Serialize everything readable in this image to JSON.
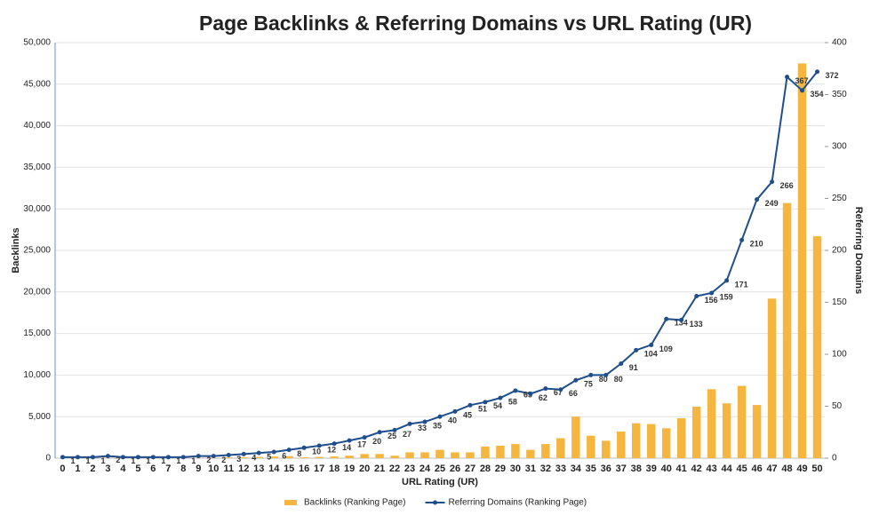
{
  "chart_data": {
    "type": "bar+line",
    "title": "Page Backlinks & Referring Domains vs URL Rating (UR)",
    "x_label": "URL Rating (UR)",
    "y_label": "Backlinks",
    "y2_label": "Referring Domains",
    "categories": [
      "0",
      "1",
      "2",
      "3",
      "4",
      "5",
      "6",
      "7",
      "8",
      "9",
      "10",
      "11",
      "12",
      "13",
      "14",
      "15",
      "16",
      "17",
      "18",
      "19",
      "20",
      "21",
      "22",
      "23",
      "24",
      "25",
      "26",
      "27",
      "28",
      "29",
      "30",
      "31",
      "32",
      "33",
      "34",
      "35",
      "36",
      "37",
      "38",
      "39",
      "40",
      "41",
      "42",
      "43",
      "44",
      "45",
      "46",
      "47",
      "48",
      "49",
      "50"
    ],
    "series": [
      {
        "name": "Backlinks (Ranking Page)",
        "type": "bar",
        "color": "#f4b63f",
        "values": [
          20,
          20,
          20,
          50,
          50,
          30,
          30,
          30,
          40,
          50,
          60,
          80,
          100,
          150,
          200,
          250,
          100,
          150,
          200,
          300,
          500,
          500,
          300,
          700,
          700,
          1000,
          700,
          700,
          1400,
          1500,
          1700,
          1000,
          1700,
          2400,
          5000,
          2700,
          2100,
          3200,
          4200,
          4100,
          3600,
          4800,
          6200,
          8300,
          6600,
          8700,
          6400,
          19200,
          30700,
          47500,
          26700
        ]
      },
      {
        "name": "Referring Domains (Ranking Page)",
        "type": "line",
        "axis": "y2",
        "color": "#1f4e8c",
        "values": [
          1,
          1,
          1,
          2,
          1,
          1,
          1,
          1,
          1,
          2,
          2,
          3,
          4,
          5,
          6,
          8,
          10,
          12,
          14,
          17,
          20,
          25,
          27,
          33,
          35,
          40,
          45,
          51,
          54,
          58,
          65,
          62,
          67,
          66,
          75,
          80,
          80,
          91,
          104,
          109,
          134,
          133,
          156,
          159,
          171,
          210,
          249,
          266,
          367,
          354,
          372
        ]
      }
    ],
    "ylim": [
      0,
      50000
    ],
    "yticks": [
      0,
      {
        "value": 5000,
        "label": "5,000"
      },
      {
        "value": 10000,
        "label": "10,000"
      },
      {
        "value": 15000,
        "label": "15,000"
      },
      {
        "value": 20000,
        "label": "20,000"
      },
      {
        "value": 25000,
        "label": "25,000"
      },
      {
        "value": 30000,
        "label": "30,000"
      },
      {
        "value": 35000,
        "label": "35,000"
      },
      {
        "value": 40000,
        "label": "40,000"
      },
      {
        "value": 45000,
        "label": "45,000"
      },
      {
        "value": 50000,
        "label": "50,000"
      }
    ],
    "y2lim": [
      0,
      400
    ],
    "y2ticks": [
      0,
      50,
      100,
      150,
      200,
      250,
      300,
      350,
      400
    ],
    "grid": true,
    "legend": "bottom"
  }
}
